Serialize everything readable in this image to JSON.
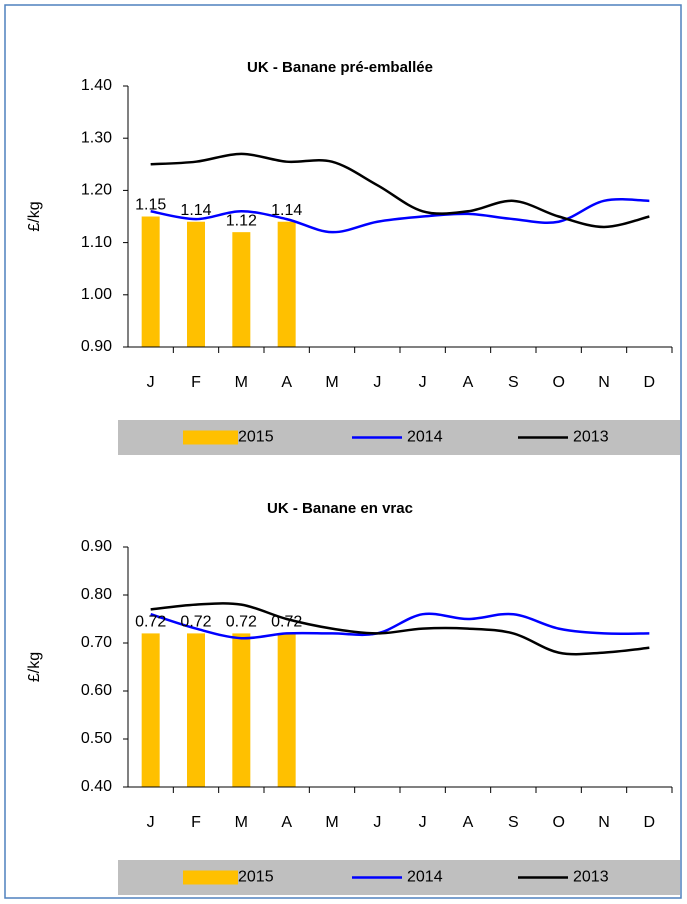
{
  "chart_data": [
    {
      "type": "combo",
      "title": "UK - Banane pré-emballée",
      "ylabel": "£/kg",
      "categories": [
        "J",
        "F",
        "M",
        "A",
        "M",
        "J",
        "J",
        "A",
        "S",
        "O",
        "N",
        "D"
      ],
      "ylim": [
        0.9,
        1.4
      ],
      "yticks": [
        {
          "value": 0.9,
          "label": "0.90"
        },
        {
          "value": 1.0,
          "label": "1.00"
        },
        {
          "value": 1.1,
          "label": "1.10"
        },
        {
          "value": 1.2,
          "label": "1.20"
        },
        {
          "value": 1.3,
          "label": "1.30"
        },
        {
          "value": 1.4,
          "label": "1.40"
        }
      ],
      "grid": false,
      "series": [
        {
          "name": "2015",
          "type": "bar",
          "color": "#FFC000",
          "data_labels": true,
          "values": [
            1.15,
            1.14,
            1.12,
            1.14,
            null,
            null,
            null,
            null,
            null,
            null,
            null,
            null
          ]
        },
        {
          "name": "2014",
          "type": "line",
          "color": "#0000FF",
          "values": [
            1.16,
            1.145,
            1.16,
            1.145,
            1.12,
            1.14,
            1.15,
            1.155,
            1.145,
            1.14,
            1.18,
            1.18
          ]
        },
        {
          "name": "2013",
          "type": "line",
          "color": "#000000",
          "values": [
            1.25,
            1.255,
            1.27,
            1.255,
            1.255,
            1.21,
            1.16,
            1.16,
            1.18,
            1.15,
            1.13,
            1.15
          ]
        }
      ]
    },
    {
      "type": "combo",
      "title": "UK - Banane en vrac",
      "ylabel": "£/kg",
      "categories": [
        "J",
        "F",
        "M",
        "A",
        "M",
        "J",
        "J",
        "A",
        "S",
        "O",
        "N",
        "D"
      ],
      "ylim": [
        0.4,
        0.9
      ],
      "yticks": [
        {
          "value": 0.4,
          "label": "0.40"
        },
        {
          "value": 0.5,
          "label": "0.50"
        },
        {
          "value": 0.6,
          "label": "0.60"
        },
        {
          "value": 0.7,
          "label": "0.70"
        },
        {
          "value": 0.8,
          "label": "0.80"
        },
        {
          "value": 0.9,
          "label": "0.90"
        }
      ],
      "grid": false,
      "series": [
        {
          "name": "2015",
          "type": "bar",
          "color": "#FFC000",
          "data_labels": true,
          "values": [
            0.72,
            0.72,
            0.72,
            0.72,
            null,
            null,
            null,
            null,
            null,
            null,
            null,
            null
          ]
        },
        {
          "name": "2014",
          "type": "line",
          "color": "#0000FF",
          "values": [
            0.76,
            0.73,
            0.71,
            0.72,
            0.72,
            0.72,
            0.76,
            0.75,
            0.76,
            0.73,
            0.72,
            0.72
          ]
        },
        {
          "name": "2013",
          "type": "line",
          "color": "#000000",
          "values": [
            0.77,
            0.78,
            0.78,
            0.75,
            0.73,
            0.72,
            0.73,
            0.73,
            0.72,
            0.68,
            0.68,
            0.69
          ]
        }
      ]
    }
  ]
}
